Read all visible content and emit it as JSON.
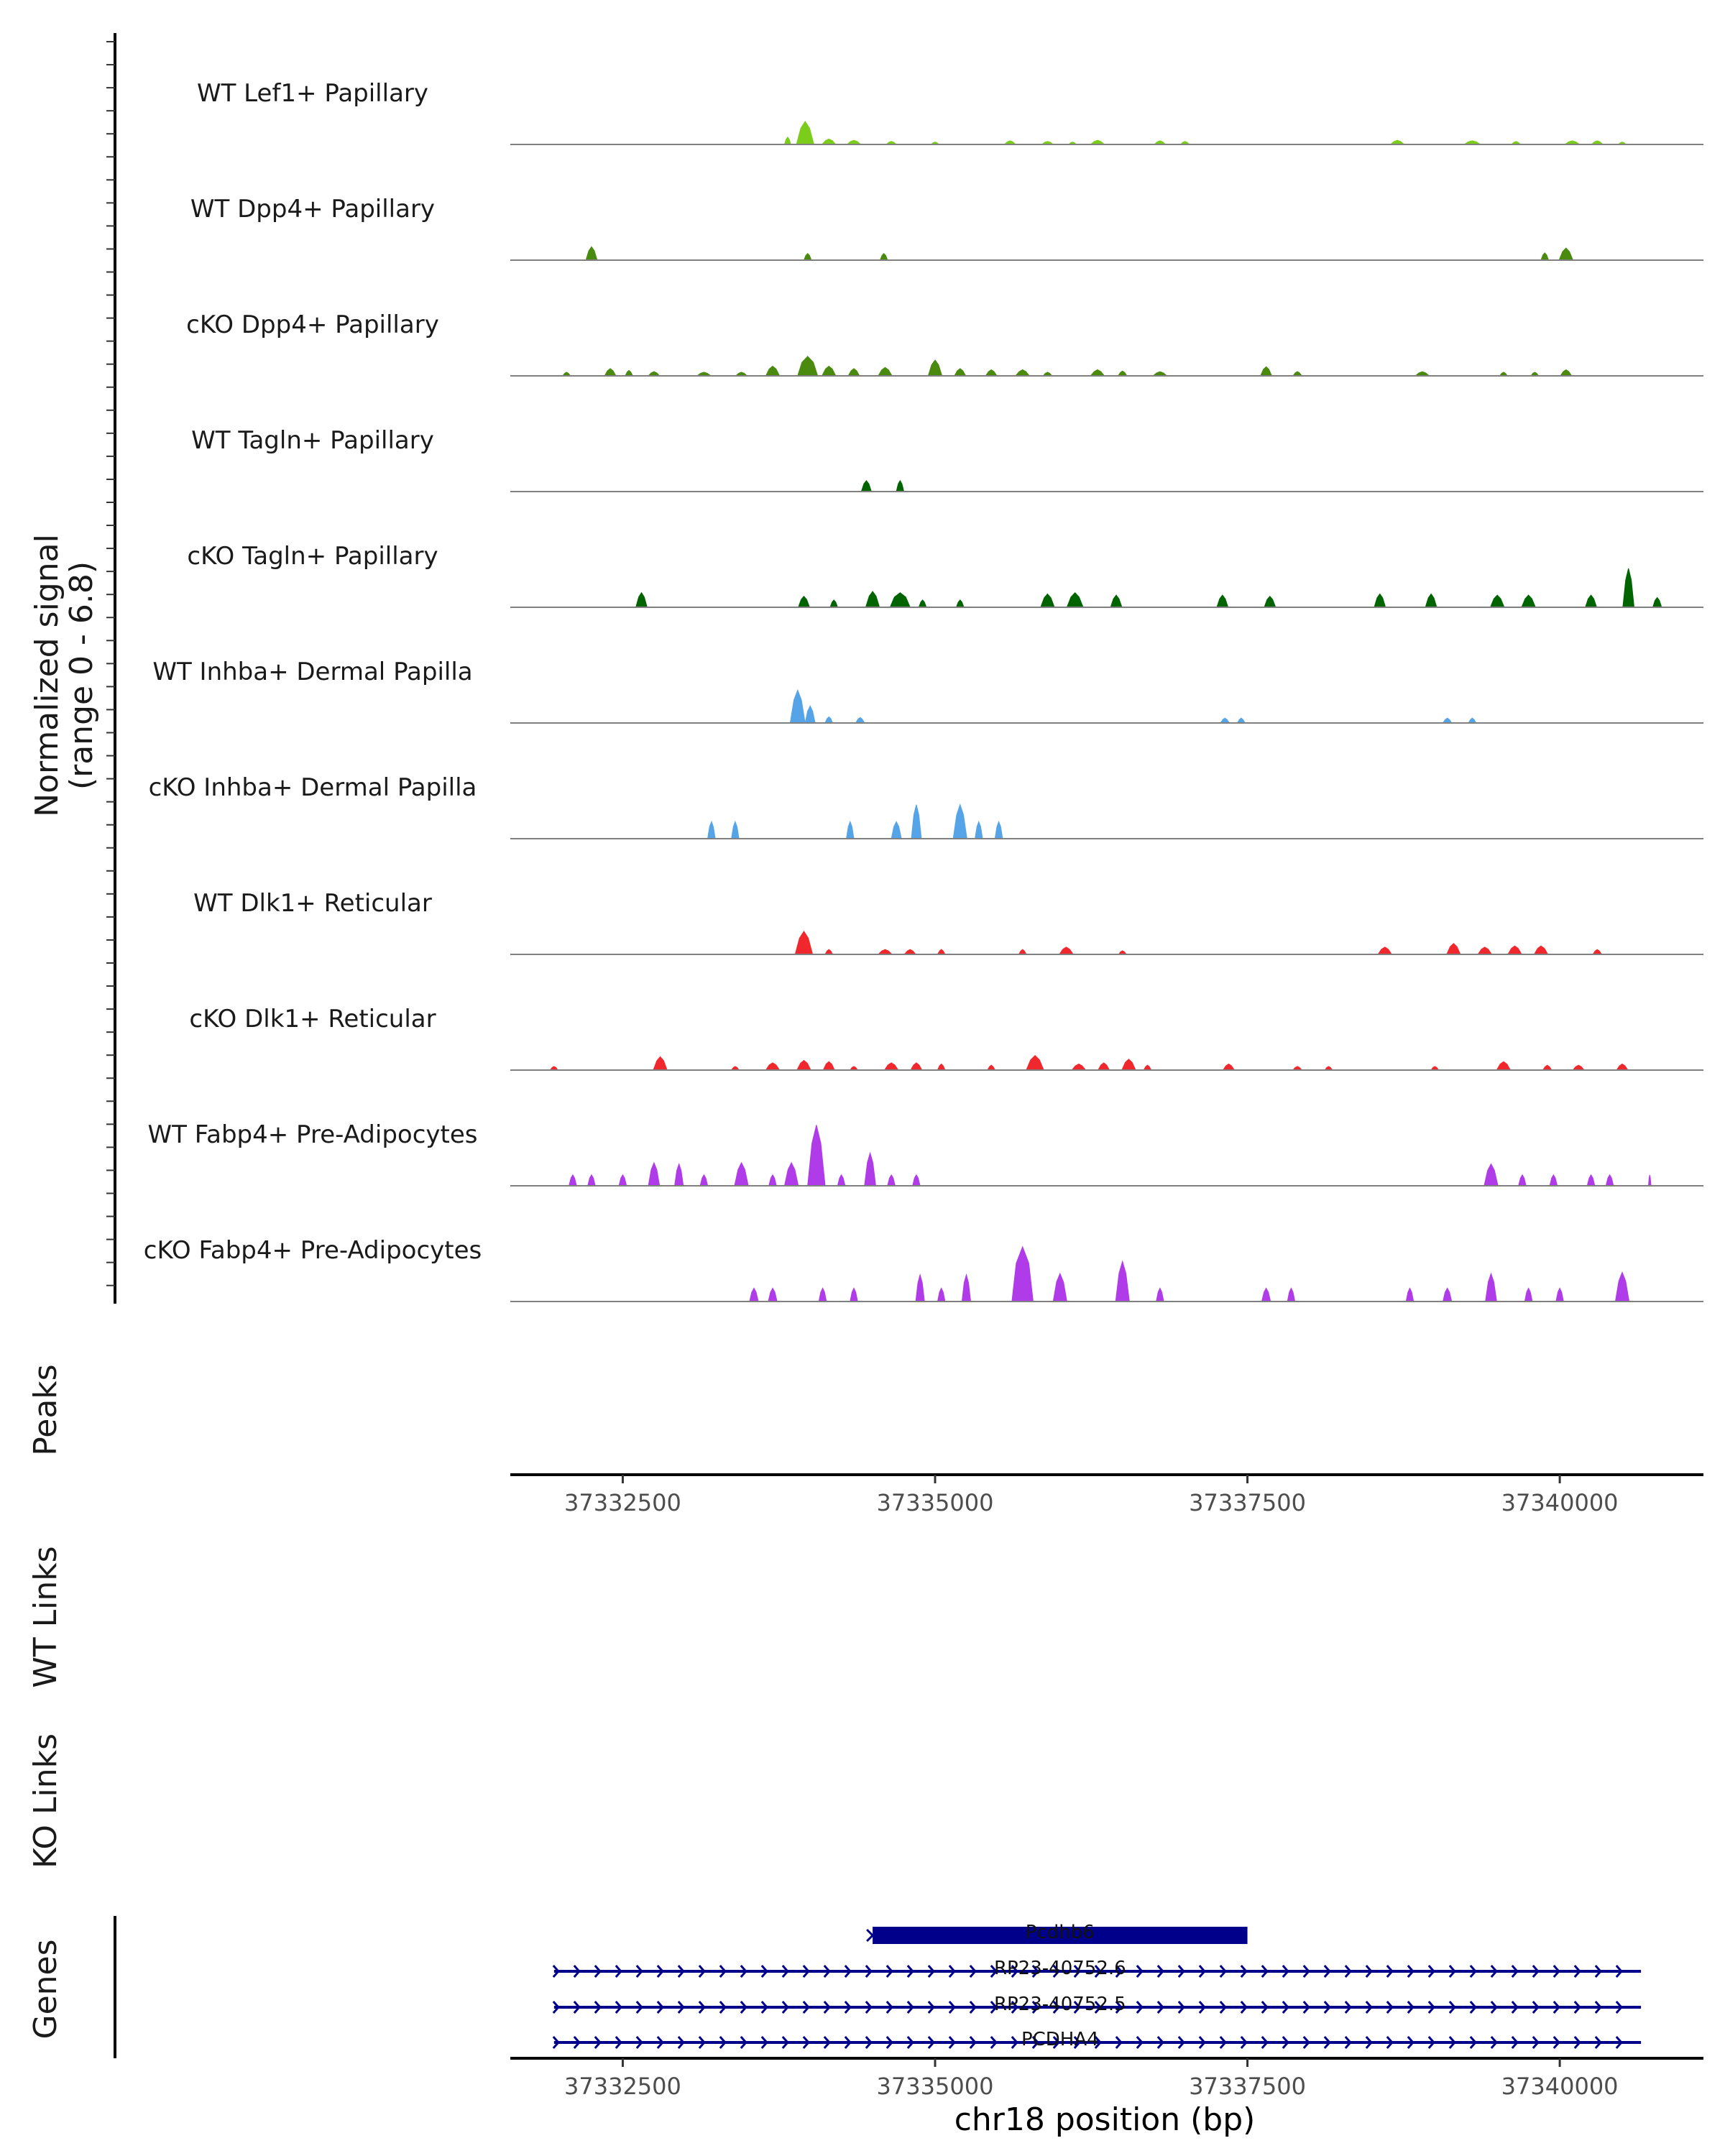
{
  "chart_data": {
    "type": "area",
    "chromosome": "chr18",
    "xlim": [
      37331600,
      37341150
    ],
    "xticks": [
      37332500,
      37335000,
      37337500,
      37340000
    ],
    "xtick_labels": [
      "37332500",
      "37335000",
      "37337500",
      "37340000"
    ],
    "xlabel": "chr18 position (bp)",
    "ylabel_line1": "Normalized signal",
    "ylabel_line2": "(range 0 - 6.8)",
    "ylim": [
      0,
      6.8
    ],
    "side_labels": {
      "peaks": "Peaks",
      "wt_links": "WT Links",
      "ko_links": "KO Links",
      "genes": "Genes"
    },
    "tracks": [
      {
        "name": "WT Lef1+ Papillary",
        "color": "#7ccd1b",
        "peaks": [
          [
            37333960,
            140,
            1.9
          ],
          [
            37333820,
            50,
            0.6
          ],
          [
            37334150,
            110,
            0.45
          ],
          [
            37334350,
            110,
            0.35
          ],
          [
            37334650,
            80,
            0.25
          ],
          [
            37335000,
            60,
            0.2
          ],
          [
            37335600,
            90,
            0.3
          ],
          [
            37335900,
            90,
            0.25
          ],
          [
            37336100,
            60,
            0.2
          ],
          [
            37336300,
            110,
            0.35
          ],
          [
            37336800,
            90,
            0.3
          ],
          [
            37337000,
            70,
            0.25
          ],
          [
            37338700,
            110,
            0.35
          ],
          [
            37339300,
            130,
            0.3
          ],
          [
            37339650,
            70,
            0.25
          ],
          [
            37340100,
            120,
            0.3
          ],
          [
            37340300,
            90,
            0.3
          ],
          [
            37340500,
            60,
            0.2
          ]
        ]
      },
      {
        "name": "WT Dpp4+ Papillary",
        "color": "#4a8a0f",
        "peaks": [
          [
            37332250,
            90,
            1.1
          ],
          [
            37333980,
            60,
            0.55
          ],
          [
            37334590,
            60,
            0.55
          ],
          [
            37339880,
            60,
            0.6
          ],
          [
            37340050,
            110,
            1.0
          ]
        ]
      },
      {
        "name": "cKO Dpp4+ Papillary",
        "color": "#4a8a0f",
        "peaks": [
          [
            37332050,
            60,
            0.3
          ],
          [
            37332400,
            90,
            0.6
          ],
          [
            37332550,
            60,
            0.45
          ],
          [
            37332750,
            90,
            0.35
          ],
          [
            37333150,
            110,
            0.3
          ],
          [
            37333450,
            90,
            0.3
          ],
          [
            37333700,
            110,
            0.8
          ],
          [
            37333980,
            160,
            1.6
          ],
          [
            37334150,
            110,
            0.8
          ],
          [
            37334350,
            90,
            0.6
          ],
          [
            37334600,
            110,
            0.7
          ],
          [
            37335000,
            110,
            1.3
          ],
          [
            37335200,
            90,
            0.6
          ],
          [
            37335450,
            90,
            0.5
          ],
          [
            37335700,
            110,
            0.5
          ],
          [
            37335900,
            70,
            0.3
          ],
          [
            37336300,
            110,
            0.5
          ],
          [
            37336500,
            70,
            0.4
          ],
          [
            37336800,
            110,
            0.35
          ],
          [
            37337650,
            90,
            0.75
          ],
          [
            37337900,
            70,
            0.35
          ],
          [
            37338900,
            110,
            0.35
          ],
          [
            37339550,
            60,
            0.3
          ],
          [
            37339800,
            60,
            0.3
          ],
          [
            37340050,
            90,
            0.5
          ]
        ]
      },
      {
        "name": "WT Tagln+ Papillary",
        "color": "#006400",
        "peaks": [
          [
            37334450,
            80,
            0.9
          ],
          [
            37334720,
            60,
            0.9
          ]
        ]
      },
      {
        "name": "cKO Tagln+ Papillary",
        "color": "#006400",
        "peaks": [
          [
            37332650,
            90,
            1.2
          ],
          [
            37333950,
            90,
            0.9
          ],
          [
            37334190,
            60,
            0.6
          ],
          [
            37334500,
            110,
            1.3
          ],
          [
            37334720,
            160,
            1.2
          ],
          [
            37334900,
            60,
            0.6
          ],
          [
            37335200,
            60,
            0.6
          ],
          [
            37335900,
            110,
            1.1
          ],
          [
            37336120,
            130,
            1.2
          ],
          [
            37336450,
            90,
            1.0
          ],
          [
            37337300,
            90,
            1.0
          ],
          [
            37337680,
            90,
            0.9
          ],
          [
            37338560,
            90,
            1.1
          ],
          [
            37338970,
            90,
            1.1
          ],
          [
            37339500,
            110,
            1.0
          ],
          [
            37339750,
            110,
            1.0
          ],
          [
            37340250,
            90,
            1.0
          ],
          [
            37340550,
            90,
            3.2
          ],
          [
            37340780,
            70,
            0.8
          ]
        ]
      },
      {
        "name": "WT Inhba+ Dermal Papilla",
        "color": "#56a4e8",
        "peaks": [
          [
            37333900,
            120,
            2.7
          ],
          [
            37334000,
            80,
            1.4
          ],
          [
            37334150,
            60,
            0.5
          ],
          [
            37334400,
            70,
            0.45
          ],
          [
            37337320,
            70,
            0.4
          ],
          [
            37337450,
            60,
            0.4
          ],
          [
            37339100,
            70,
            0.4
          ],
          [
            37339300,
            60,
            0.4
          ]
        ]
      },
      {
        "name": "cKO Inhba+ Dermal Papilla",
        "color": "#56a4e8",
        "peaks": [
          [
            37333210,
            60,
            1.4
          ],
          [
            37333400,
            60,
            1.4
          ],
          [
            37334320,
            60,
            1.4
          ],
          [
            37334690,
            80,
            1.4
          ],
          [
            37334850,
            80,
            2.8
          ],
          [
            37335200,
            110,
            2.8
          ],
          [
            37335350,
            60,
            1.4
          ],
          [
            37335510,
            60,
            1.4
          ]
        ]
      },
      {
        "name": "WT Dlk1+ Reticular",
        "color": "#f0282d",
        "peaks": [
          [
            37333950,
            140,
            1.9
          ],
          [
            37334150,
            60,
            0.4
          ],
          [
            37334600,
            110,
            0.4
          ],
          [
            37334800,
            90,
            0.4
          ],
          [
            37335050,
            60,
            0.4
          ],
          [
            37335700,
            60,
            0.4
          ],
          [
            37336050,
            110,
            0.6
          ],
          [
            37336500,
            60,
            0.3
          ],
          [
            37338600,
            110,
            0.6
          ],
          [
            37339150,
            110,
            0.9
          ],
          [
            37339400,
            110,
            0.6
          ],
          [
            37339640,
            110,
            0.7
          ],
          [
            37339850,
            110,
            0.7
          ],
          [
            37340300,
            70,
            0.4
          ]
        ]
      },
      {
        "name": "cKO Dlk1+ Reticular",
        "color": "#f0282d",
        "peaks": [
          [
            37331950,
            60,
            0.3
          ],
          [
            37332800,
            110,
            1.1
          ],
          [
            37333400,
            60,
            0.3
          ],
          [
            37333700,
            110,
            0.6
          ],
          [
            37333950,
            110,
            0.8
          ],
          [
            37334150,
            90,
            0.7
          ],
          [
            37334350,
            60,
            0.3
          ],
          [
            37334650,
            110,
            0.6
          ],
          [
            37334850,
            90,
            0.6
          ],
          [
            37335050,
            60,
            0.5
          ],
          [
            37335450,
            60,
            0.4
          ],
          [
            37335800,
            140,
            1.2
          ],
          [
            37336150,
            110,
            0.5
          ],
          [
            37336350,
            90,
            0.6
          ],
          [
            37336550,
            110,
            0.9
          ],
          [
            37336700,
            60,
            0.4
          ],
          [
            37337350,
            90,
            0.5
          ],
          [
            37337900,
            70,
            0.3
          ],
          [
            37338150,
            60,
            0.3
          ],
          [
            37339000,
            60,
            0.3
          ],
          [
            37339550,
            110,
            0.7
          ],
          [
            37339900,
            70,
            0.4
          ],
          [
            37340150,
            90,
            0.4
          ],
          [
            37340500,
            90,
            0.5
          ]
        ]
      },
      {
        "name": "WT Fabp4+ Pre-Adipocytes",
        "color": "#b03be8",
        "peaks": [
          [
            37332100,
            60,
            0.9
          ],
          [
            37332250,
            60,
            0.9
          ],
          [
            37332500,
            60,
            0.9
          ],
          [
            37332750,
            90,
            1.9
          ],
          [
            37332950,
            70,
            1.8
          ],
          [
            37333150,
            60,
            0.9
          ],
          [
            37333450,
            110,
            1.9
          ],
          [
            37333700,
            60,
            0.9
          ],
          [
            37333850,
            110,
            1.9
          ],
          [
            37334050,
            140,
            5.0
          ],
          [
            37334250,
            60,
            0.9
          ],
          [
            37334480,
            90,
            2.7
          ],
          [
            37334650,
            60,
            0.9
          ],
          [
            37334850,
            60,
            0.9
          ],
          [
            37339450,
            110,
            1.8
          ],
          [
            37339700,
            60,
            0.9
          ],
          [
            37339950,
            60,
            0.9
          ],
          [
            37340250,
            60,
            0.9
          ],
          [
            37340400,
            60,
            0.9
          ],
          [
            37340720,
            20,
            0.9
          ]
        ]
      },
      {
        "name": "cKO Fabp4+ Pre-Adipocytes",
        "color": "#b03be8",
        "peaks": [
          [
            37333550,
            70,
            1.1
          ],
          [
            37333700,
            70,
            1.1
          ],
          [
            37334100,
            60,
            1.1
          ],
          [
            37334350,
            60,
            1.1
          ],
          [
            37334880,
            70,
            2.2
          ],
          [
            37335050,
            60,
            1.1
          ],
          [
            37335250,
            70,
            2.2
          ],
          [
            37335700,
            170,
            4.5
          ],
          [
            37336000,
            110,
            2.3
          ],
          [
            37336500,
            110,
            3.3
          ],
          [
            37336800,
            60,
            1.1
          ],
          [
            37337650,
            70,
            1.1
          ],
          [
            37337850,
            60,
            1.1
          ],
          [
            37338800,
            60,
            1.1
          ],
          [
            37339100,
            70,
            1.1
          ],
          [
            37339450,
            90,
            2.3
          ],
          [
            37339750,
            60,
            1.1
          ],
          [
            37340000,
            60,
            1.1
          ],
          [
            37340500,
            110,
            2.4
          ]
        ]
      }
    ],
    "genes": [
      {
        "name": "Pcdhb6",
        "start": 37334500,
        "end": 37337500,
        "strand": "+",
        "thick": true
      },
      {
        "name": "RP23-40752.6",
        "start": 37331950,
        "end": 37340650,
        "strand": "+",
        "thick": false
      },
      {
        "name": "RP23-40752.5",
        "start": 37331950,
        "end": 37340650,
        "strand": "+",
        "thick": false
      },
      {
        "name": "PCDHA4",
        "start": 37331950,
        "end": 37340650,
        "strand": "+",
        "thick": false
      }
    ],
    "gene_color": "#00008b",
    "baseline_color": "#808080"
  }
}
